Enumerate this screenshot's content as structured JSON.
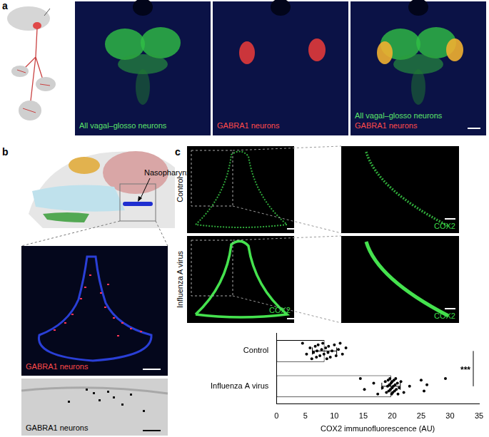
{
  "panels": {
    "a": {
      "label": "a",
      "images": [
        {
          "labels": [
            {
              "text": "All vagal–glosso neurons",
              "color": "#5be36b"
            }
          ]
        },
        {
          "labels": [
            {
              "text": "GABRA1 neurons",
              "color": "#ff4a4a"
            }
          ]
        },
        {
          "labels": [
            {
              "text": "All vagal–glosso neurons",
              "color": "#5be36b"
            },
            {
              "text": "GABRA1 neurons",
              "color": "#ff4a4a"
            }
          ]
        }
      ]
    },
    "b": {
      "label": "b",
      "schematic_label": "Nasopharynx",
      "fluorescence_label": {
        "text": "GABRA1 neurons",
        "color": "#ff4a4a"
      },
      "grey_label": {
        "text": "GABRA1 neurons",
        "color": "#000000"
      }
    },
    "c": {
      "label": "c",
      "rows": [
        "Control",
        "Influenza A virus"
      ],
      "stain": {
        "text": "COX2",
        "color": "#3ddc4a"
      }
    }
  },
  "chart_data": {
    "type": "bar",
    "orientation": "horizontal",
    "categories": [
      "Control",
      "Influenza A virus"
    ],
    "values": [
      8.3,
      19.8
    ],
    "errors": [
      2.1,
      1.6
    ],
    "points": [
      [
        4.5,
        5.2,
        5.8,
        6.1,
        6.4,
        6.7,
        6.9,
        7.0,
        7.2,
        7.5,
        7.8,
        8.0,
        8.2,
        8.5,
        8.7,
        8.9,
        9.0,
        9.3,
        9.6,
        10.0,
        10.3,
        10.7,
        11.0,
        11.4,
        12.0
      ],
      [
        14.5,
        15.2,
        16.8,
        17.5,
        18.3,
        18.8,
        19.0,
        19.2,
        19.3,
        19.4,
        19.5,
        19.6,
        19.7,
        19.8,
        19.9,
        20.0,
        20.0,
        20.1,
        20.2,
        20.3,
        20.4,
        20.5,
        20.6,
        20.7,
        20.9,
        21.0,
        21.2,
        21.5,
        22.0,
        23.0,
        25.0,
        25.5,
        26.0,
        29.2
      ]
    ],
    "color": "#ffffff",
    "x_label": "COX2 immunofluorescence (AU)",
    "xlim": [
      0,
      35
    ],
    "xticks": [
      0,
      5,
      10,
      15,
      20,
      25,
      30,
      35
    ],
    "grid": false,
    "annotations": [
      "***"
    ]
  }
}
